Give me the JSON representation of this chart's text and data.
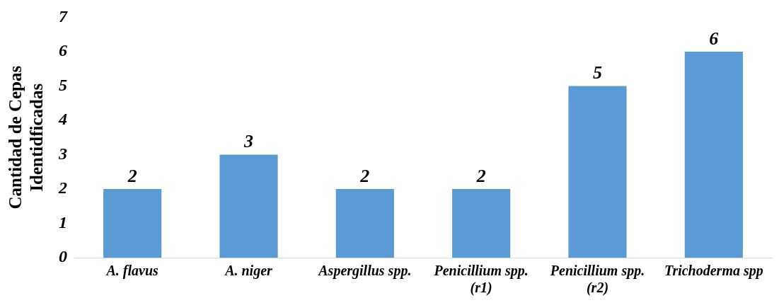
{
  "chart_data": {
    "type": "bar",
    "ylabel": "Cantidad de Cepas\nIdentidficadas",
    "categories": [
      "A. flavus",
      "A. niger",
      "Aspergillus spp.",
      "Penicillium spp.\n(r1)",
      "Penicillium spp.\n(r2)",
      "Trichoderma spp"
    ],
    "values": [
      2,
      3,
      2,
      2,
      5,
      6
    ],
    "color": "#5b9bd5",
    "ylim": [
      0,
      7
    ],
    "yticks": [
      0,
      1,
      2,
      3,
      4,
      5,
      6,
      7
    ],
    "grid": false,
    "legend": false,
    "data_labels": true
  }
}
